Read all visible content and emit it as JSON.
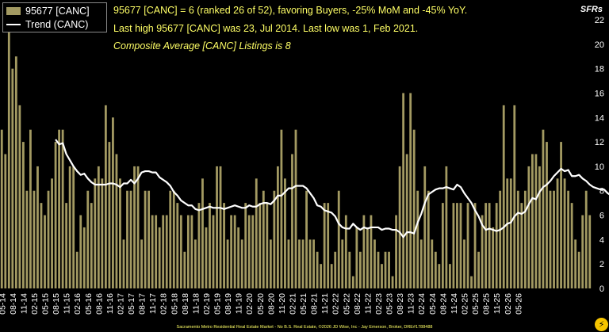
{
  "header": {
    "line1": "95677 [CANC] = 6 (ranked 26 of 52), favoring Buyers, -25% MoM and -45% YoY.",
    "line2": "Last high 95677 [CANC] was 23, Jul 2014. Last low was 1, Feb 2021.",
    "line3": "Composite Average [CANC] Listings is 8",
    "badge": "SFRs"
  },
  "footer": {
    "text": "Sacramento Metro Residential Real Estate Market - No B.S. Real Estate, ©2026 JD Wise, Inc - Jay Emerson, Broker, DRE#1788488"
  },
  "logo": {
    "glyph": "⚡",
    "color": "#f5c400"
  },
  "colors": {
    "bar": "#a39a62",
    "trend": "#ffffff",
    "background": "#000000",
    "axis_text": "#ffffff",
    "highlight_text": "#ffff66"
  },
  "chart_data": {
    "type": "bar",
    "series": [
      {
        "name": "95677 [CANC]",
        "type": "bar",
        "values": [
          13,
          11,
          23,
          18,
          19,
          15,
          12,
          8,
          13,
          8,
          10,
          7,
          6,
          8,
          9,
          12,
          13,
          13,
          7,
          10,
          10,
          3,
          6,
          5,
          8,
          7,
          9,
          10,
          9,
          15,
          12,
          14,
          11,
          9,
          4,
          8,
          8,
          10,
          10,
          4,
          8,
          8,
          6,
          6,
          5,
          6,
          6,
          8,
          8,
          7,
          6,
          3,
          6,
          6,
          4,
          7,
          9,
          5,
          7,
          6,
          10,
          10,
          7,
          4,
          6,
          6,
          5,
          4,
          7,
          6,
          6,
          9,
          7,
          8,
          7,
          4,
          8,
          10,
          13,
          9,
          4,
          11,
          13,
          4,
          4,
          8,
          4,
          4,
          3,
          2,
          7,
          7,
          2,
          3,
          8,
          4,
          6,
          3,
          1,
          5,
          3,
          6,
          5,
          6,
          4,
          3,
          2,
          3,
          3,
          1,
          6,
          10,
          16,
          11,
          16,
          13,
          8,
          4,
          10,
          8,
          4,
          3,
          2,
          7,
          10,
          2,
          7,
          7,
          7,
          4,
          7,
          1,
          7,
          3,
          6,
          7,
          7,
          5,
          7,
          8,
          15,
          9,
          9,
          15,
          8,
          7,
          8,
          10,
          11,
          11,
          10,
          13,
          12,
          8,
          8,
          9,
          12,
          9,
          8,
          7,
          4,
          3,
          6,
          8,
          6
        ]
      },
      {
        "name": "Trend (CANC)",
        "type": "line",
        "start_index": 15,
        "values": [
          12.2,
          11.8,
          11.9,
          11.0,
          10.5,
          10.0,
          9.6,
          9.3,
          9.4,
          9.0,
          8.7,
          8.5,
          8.5,
          8.5,
          8.5,
          8.6,
          8.6,
          8.5,
          8.3,
          8.6,
          8.6,
          8.9,
          8.6,
          9.0,
          9.5,
          9.6,
          9.6,
          9.5,
          9.5,
          9.1,
          8.9,
          8.7,
          8.4,
          7.9,
          7.6,
          7.2,
          7.0,
          6.8,
          6.8,
          6.5,
          6.4,
          6.5,
          6.6,
          6.7,
          6.6,
          6.6,
          6.6,
          6.5,
          6.6,
          6.7,
          6.8,
          6.7,
          6.6,
          6.6,
          6.8,
          6.7,
          6.7,
          6.9,
          7.0,
          7.0,
          6.9,
          7.2,
          7.6,
          7.6,
          7.9,
          8.2,
          8.2,
          8.4,
          8.4,
          8.4,
          8.2,
          7.8,
          7.4,
          6.8,
          6.7,
          6.4,
          6.3,
          6.2,
          5.9,
          5.3,
          5.0,
          4.9,
          4.9,
          5.3,
          5.0,
          4.8,
          5.0,
          4.9,
          5.0,
          5.0,
          5.0,
          4.8,
          4.9,
          4.9,
          4.8,
          4.8,
          4.6,
          4.2,
          4.6,
          4.6,
          4.5,
          5.4,
          6.1,
          7.0,
          7.7,
          7.9,
          8.1,
          8.2,
          8.2,
          8.3,
          8.2,
          8.1,
          8.5,
          8.3,
          7.8,
          7.4,
          7.0,
          6.4,
          5.9,
          5.2,
          4.8,
          4.9,
          4.8,
          4.7,
          4.8,
          5.0,
          5.3,
          5.4,
          5.9,
          6.2,
          6.1,
          6.3,
          6.9,
          7.4,
          7.3,
          7.9,
          8.3,
          8.5,
          8.8,
          9.2,
          9.5,
          9.8,
          9.6,
          9.7,
          9.2,
          9.2,
          9.3,
          9.0,
          8.8,
          8.5,
          8.3,
          8.2,
          8.1,
          8.1,
          7.8,
          7.6
        ]
      }
    ],
    "x_tick_labels": [
      "05-14",
      "08-14",
      "11-14",
      "02-15",
      "05-15",
      "08-15",
      "11-15",
      "02-16",
      "05-16",
      "08-16",
      "11-16",
      "02-17",
      "05-17",
      "08-17",
      "11-17",
      "02-18",
      "05-18",
      "08-18",
      "11-18",
      "02-19",
      "05-19",
      "08-19",
      "11-19",
      "02-20",
      "05-20",
      "08-20",
      "11-20",
      "02-21",
      "05-21",
      "08-21",
      "11-21",
      "02-22",
      "05-22",
      "08-22",
      "11-22",
      "02-23",
      "05-23",
      "08-23",
      "11-23",
      "02-24",
      "05-24",
      "08-24",
      "11-24",
      "02-25",
      "05-25",
      "08-25",
      "11-25",
      "02-26",
      "05-26"
    ],
    "y_axis": {
      "side": "right",
      "ylim": [
        0,
        22
      ],
      "ticks": [
        0,
        2,
        4,
        6,
        8,
        10,
        12,
        14,
        16,
        18,
        20,
        22
      ]
    },
    "grid": false,
    "legend": "top-left"
  }
}
